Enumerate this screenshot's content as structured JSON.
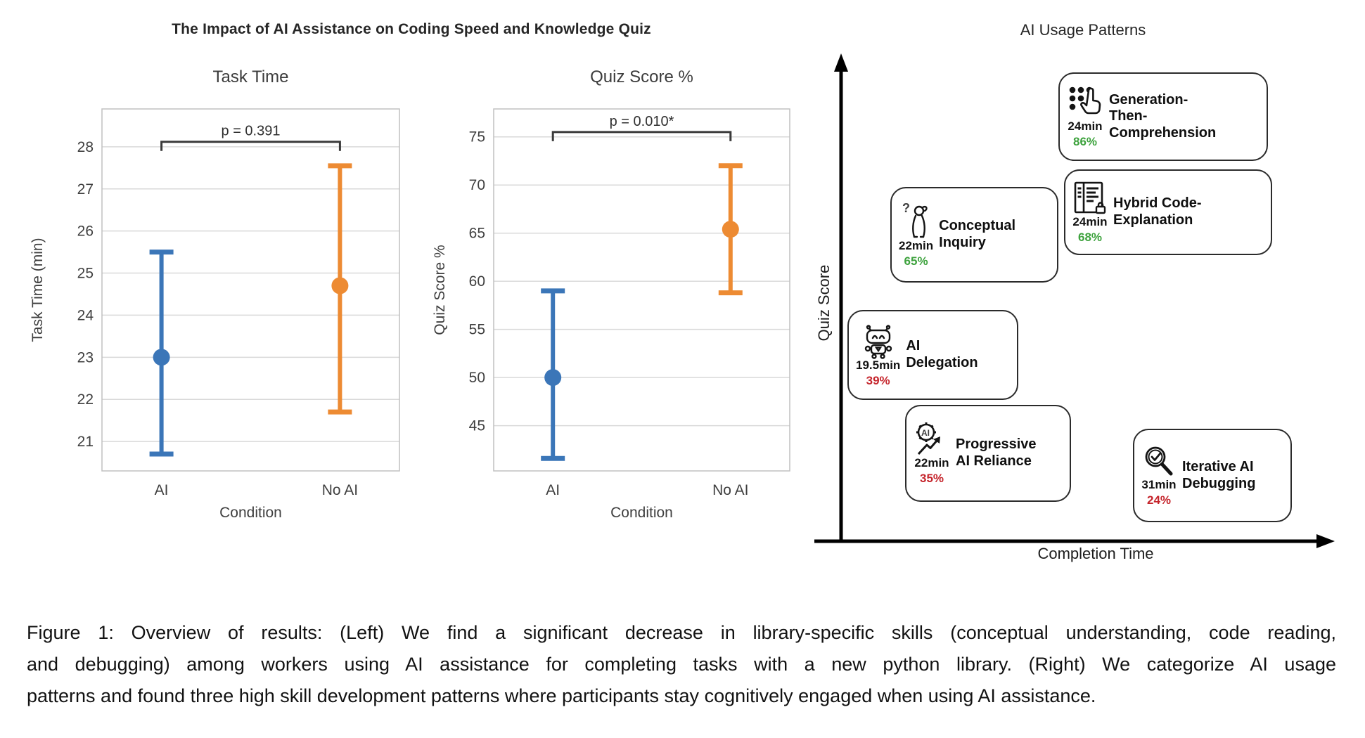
{
  "figure": {
    "main_title": "The Impact of AI Assistance on Coding Speed and Knowledge Quiz",
    "caption_lines": [
      "Figure 1: Overview of results: (Left) We find a significant decrease in library-specific skills (conceptual understanding, code reading,",
      "and debugging) among workers using AI assistance for completing tasks with a new python library. (Right) We categorize AI usage",
      "patterns and found three high skill development patterns where participants stay cognitively engaged when using AI assistance."
    ]
  },
  "colors": {
    "ai_blue": "#3B76B8",
    "no_ai_orange": "#ED8B33",
    "high_skill_green": "#3DA23D",
    "low_skill_red": "#C5242B",
    "gridline": "#D9D9D9",
    "frame": "#C0C0C0",
    "bracket": "#3A3A3A"
  },
  "chart_data": [
    {
      "type": "errorbar",
      "title": "Task Time",
      "xlabel": "Condition",
      "ylabel": "Task Time (min)",
      "categories": [
        "AI",
        "No AI"
      ],
      "ylim": [
        20.3,
        28.9
      ],
      "yticks": [
        21,
        22,
        23,
        24,
        25,
        26,
        27,
        28
      ],
      "grid": true,
      "series": [
        {
          "name": "AI",
          "mean": 23.0,
          "lo": 20.7,
          "hi": 25.5,
          "color": "#3B76B8"
        },
        {
          "name": "No AI",
          "mean": 24.7,
          "lo": 21.7,
          "hi": 27.55,
          "color": "#ED8B33"
        }
      ],
      "pvalue_label": "p = 0.391",
      "bracket_y": 28.12
    },
    {
      "type": "errorbar",
      "title": "Quiz Score %",
      "xlabel": "Condition",
      "ylabel": "Quiz Score %",
      "categories": [
        "AI",
        "No AI"
      ],
      "ylim": [
        40.3,
        77.9
      ],
      "yticks": [
        45,
        50,
        55,
        60,
        65,
        70,
        75
      ],
      "grid": true,
      "series": [
        {
          "name": "AI",
          "mean": 50.0,
          "lo": 41.6,
          "hi": 59.0,
          "color": "#3B76B8"
        },
        {
          "name": "No AI",
          "mean": 65.4,
          "lo": 58.8,
          "hi": 72.0,
          "color": "#ED8B33"
        }
      ],
      "pvalue_label": "p = 0.010*",
      "bracket_y": 75.5
    },
    {
      "type": "scatter",
      "title": "AI Usage Patterns",
      "xlabel": "Completion Time",
      "ylabel": "Quiz Score",
      "legend_position": "none",
      "points": [
        {
          "label": "Generation-Then-Comprehension",
          "time": "24min",
          "score": "86%",
          "skill": "high",
          "score_color": "#3DA23D",
          "icon": "tap-generate-icon"
        },
        {
          "label": "Hybrid Code-Explanation",
          "time": "24min",
          "score": "68%",
          "skill": "high",
          "score_color": "#3DA23D",
          "icon": "code-document-lock-icon"
        },
        {
          "label": "Conceptual Inquiry",
          "time": "22min",
          "score": "65%",
          "skill": "high",
          "score_color": "#3DA23D",
          "icon": "thinking-person-icon"
        },
        {
          "label": "AI Delegation",
          "time": "19.5min",
          "score": "39%",
          "skill": "low",
          "score_color": "#C5242B",
          "icon": "robot-icon"
        },
        {
          "label": "Progressive AI Reliance",
          "time": "22min",
          "score": "35%",
          "skill": "low",
          "score_color": "#C5242B",
          "icon": "ai-gear-arrow-icon"
        },
        {
          "label": "Iterative AI Debugging",
          "time": "31min",
          "score": "24%",
          "skill": "low",
          "score_color": "#C5242B",
          "icon": "magnifier-check-icon"
        }
      ]
    }
  ]
}
